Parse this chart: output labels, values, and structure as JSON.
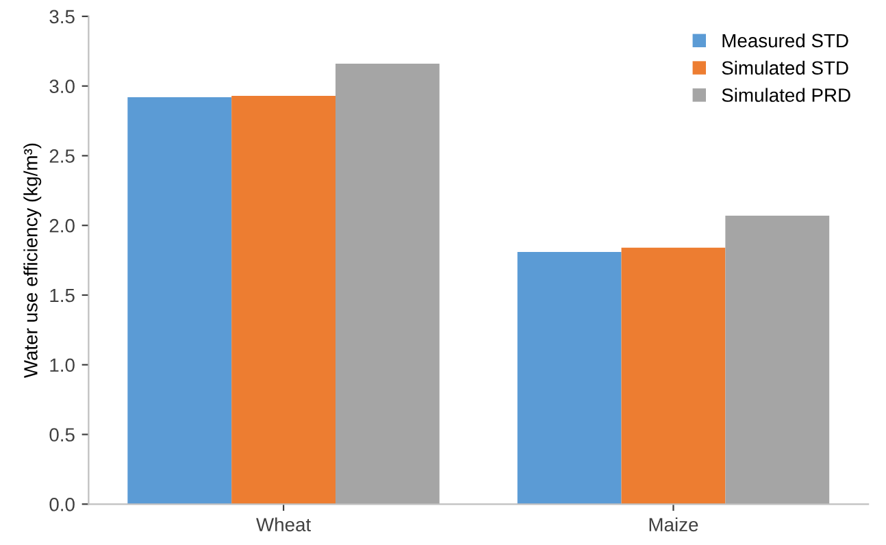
{
  "chart_data": {
    "type": "bar",
    "ylabel": "Water use efficiency (kg/m³)",
    "categories": [
      "Wheat",
      "Maize"
    ],
    "series": [
      {
        "name": "Measured STD",
        "color": "#5b9bd5",
        "values": [
          2.92,
          1.81
        ]
      },
      {
        "name": "Simulated STD",
        "color": "#ed7d31",
        "values": [
          2.93,
          1.84
        ]
      },
      {
        "name": "Simulated PRD",
        "color": "#a5a5a5",
        "values": [
          3.16,
          2.07
        ]
      }
    ],
    "ylim": [
      0,
      3.5
    ],
    "yticks": [
      {
        "value": 0,
        "label": "0.0"
      },
      {
        "value": 0.5,
        "label": "0.5"
      },
      {
        "value": 1,
        "label": "1.0"
      },
      {
        "value": 1.5,
        "label": "1.5"
      },
      {
        "value": 2,
        "label": "2.0"
      },
      {
        "value": 2.5,
        "label": "2.5"
      },
      {
        "value": 3,
        "label": "3.0"
      },
      {
        "value": 3.5,
        "label": "3.5"
      }
    ],
    "grid": false,
    "legend": "top right"
  }
}
